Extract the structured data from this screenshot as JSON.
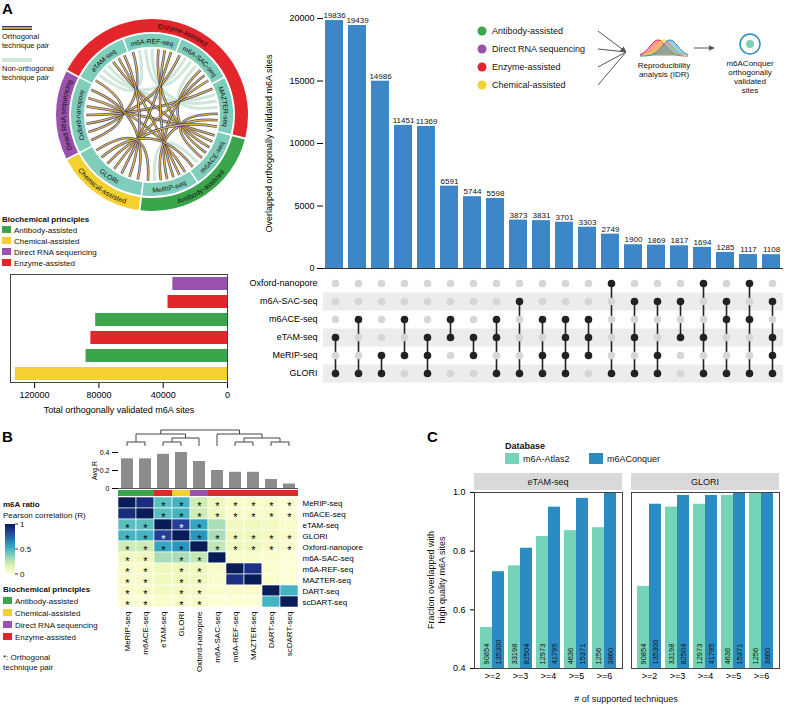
{
  "panel_labels": [
    "A",
    "B",
    "C"
  ],
  "chord_diagram": {
    "legend": [
      {
        "name": "Orthogonal technique pair"
      },
      {
        "name": "Non-orthogonal technique pair"
      }
    ],
    "techniques": [
      {
        "name": "Oxford-nanopore",
        "principle": "Direct RNA sequencing"
      },
      {
        "name": "eTAM-seq",
        "principle": "Enzyme-assisted"
      },
      {
        "name": "m6A-REF-seq",
        "principle": "Enzyme-assisted"
      },
      {
        "name": "m6A-SAC-seq",
        "principle": "Enzyme-assisted"
      },
      {
        "name": "MAZTER-seq",
        "principle": "Enzyme-assisted"
      },
      {
        "name": "m6ACE-seq",
        "principle": "Antibody-assisted"
      },
      {
        "name": "MeRIP-seq",
        "principle": "Antibody-assisted"
      },
      {
        "name": "GLORI",
        "principle": "Chemical-assisted"
      }
    ]
  },
  "principles": {
    "title": "Biochemical principles",
    "items": [
      {
        "name": "Antibody-assisted",
        "color": "#3aa54a"
      },
      {
        "name": "Chemical-assisted",
        "color": "#f4d130"
      },
      {
        "name": "Direct RNA sequencing",
        "color": "#9a52ad"
      },
      {
        "name": "Enzyme-assisted",
        "color": "#e2262c"
      }
    ]
  },
  "workflow": {
    "inputs": [
      "Antibody-assisted",
      "Direct RNA sequencing",
      "Enzyme-assisted",
      "Chemical-assisted"
    ],
    "steps": [
      "Reproducibility analysis (IDR)",
      "m6AConquer orthogonally validated sites"
    ]
  },
  "chart_data": [
    {
      "type": "upset",
      "ylabel": "Overlapped orthogonally validated m6A sites",
      "sets": [
        "Oxford-nanopore",
        "m6A-SAC-seq",
        "m6ACE-seq",
        "eTAM-seq",
        "MeRIP-seq",
        "GLORI"
      ],
      "intersections": [
        [
          "eTAM-seq",
          "GLORI"
        ],
        [
          "m6ACE-seq",
          "GLORI"
        ],
        [
          "MeRIP-seq",
          "GLORI"
        ],
        [
          "m6ACE-seq",
          "MeRIP-seq"
        ],
        [
          "eTAM-seq",
          "MeRIP-seq",
          "GLORI"
        ],
        [
          "m6ACE-seq",
          "eTAM-seq"
        ],
        [
          "eTAM-seq",
          "MeRIP-seq"
        ],
        [
          "m6ACE-seq",
          "eTAM-seq",
          "GLORI"
        ],
        [
          "m6A-SAC-seq",
          "GLORI"
        ],
        [
          "m6ACE-seq",
          "MeRIP-seq",
          "GLORI"
        ],
        [
          "m6ACE-seq",
          "eTAM-seq",
          "MeRIP-seq",
          "GLORI"
        ],
        [
          "m6ACE-seq",
          "eTAM-seq",
          "MeRIP-seq"
        ],
        [
          "Oxford-nanopore",
          "GLORI"
        ],
        [
          "m6A-SAC-seq",
          "eTAM-seq",
          "GLORI"
        ],
        [
          "m6A-SAC-seq",
          "MeRIP-seq",
          "GLORI"
        ],
        [
          "m6A-SAC-seq",
          "eTAM-seq"
        ],
        [
          "Oxford-nanopore",
          "eTAM-seq",
          "GLORI"
        ],
        [
          "m6A-SAC-seq",
          "m6ACE-seq",
          "GLORI"
        ],
        [
          "Oxford-nanopore",
          "m6ACE-seq",
          "GLORI"
        ],
        [
          "m6A-SAC-seq",
          "eTAM-seq",
          "MeRIP-seq",
          "GLORI"
        ]
      ],
      "values": [
        19836,
        19439,
        14986,
        11451,
        11369,
        6591,
        5744,
        5598,
        3873,
        3831,
        3701,
        3303,
        2749,
        1900,
        1869,
        1817,
        1694,
        1285,
        1117,
        1108
      ],
      "color": "#3d87c8",
      "ylim": [
        0,
        20000
      ],
      "yticks": [
        0,
        5000,
        10000,
        15000,
        20000
      ],
      "data_labels": true
    },
    {
      "type": "bar",
      "orientation": "horizontal",
      "categories": [
        "Oxford-nanopore",
        "m6A-SAC-seq",
        "m6ACE-seq",
        "eTAM-seq",
        "MeRIP-seq",
        "GLORI"
      ],
      "values": [
        34000,
        37000,
        82000,
        85000,
        88000,
        132000
      ],
      "colors": [
        "#9a52ad",
        "#e2262c",
        "#3aa54a",
        "#e2262c",
        "#3aa54a",
        "#f4d130"
      ],
      "xlabel": "Total orthogonally validated m6A sites",
      "xlim": [
        0,
        135000
      ],
      "xticks": [
        0,
        40000,
        80000,
        120000
      ]
    },
    {
      "type": "heatmap",
      "categories": [
        "MeRIP-seq",
        "m6ACE-seq",
        "eTAM-seq",
        "GLORI",
        "Oxford-nanopore",
        "m6A-SAC-seq",
        "m6A-REF-seq",
        "MAZTER-seq",
        "DART-seq",
        "scDART-seq"
      ],
      "principles": [
        "Antibody-assisted",
        "Antibody-assisted",
        "Enzyme-assisted",
        "Chemical-assisted",
        "Direct RNA sequencing",
        "Enzyme-assisted",
        "Enzyme-assisted",
        "Enzyme-assisted",
        "Enzyme-assisted",
        "Enzyme-assisted"
      ],
      "values": [
        [
          1,
          0.92,
          0.45,
          0.5,
          0.22,
          0.1,
          0.05,
          0.05,
          0.05,
          0.02
        ],
        [
          0.92,
          1,
          0.45,
          0.5,
          0.22,
          0.1,
          0.05,
          0.05,
          0.05,
          0.02
        ],
        [
          0.45,
          0.45,
          1,
          0.85,
          0.55,
          0.3,
          0.1,
          0.1,
          0.08,
          0.05
        ],
        [
          0.5,
          0.5,
          0.85,
          1,
          0.6,
          0.3,
          0.1,
          0.1,
          0.08,
          0.05
        ],
        [
          0.22,
          0.22,
          0.55,
          0.6,
          1,
          0.25,
          0.1,
          0.1,
          0.06,
          0.04
        ],
        [
          0.1,
          0.1,
          0.3,
          0.3,
          0.25,
          1,
          0.05,
          0.05,
          0.04,
          0.02
        ],
        [
          0.05,
          0.05,
          0.1,
          0.1,
          0.1,
          0.05,
          1,
          0.9,
          0.04,
          0.02
        ],
        [
          0.05,
          0.05,
          0.1,
          0.1,
          0.1,
          0.05,
          0.9,
          1,
          0.04,
          0.02
        ],
        [
          0.05,
          0.05,
          0.08,
          0.08,
          0.06,
          0.04,
          0.04,
          0.04,
          1,
          0.5
        ],
        [
          0.02,
          0.02,
          0.05,
          0.05,
          0.04,
          0.02,
          0.02,
          0.02,
          0.5,
          1
        ]
      ],
      "stars": [
        [
          false,
          false,
          true,
          true,
          true,
          true,
          true,
          true,
          true,
          true
        ],
        [
          false,
          false,
          true,
          true,
          true,
          true,
          true,
          true,
          true,
          true
        ],
        [
          true,
          true,
          false,
          true,
          true,
          false,
          false,
          false,
          false,
          false
        ],
        [
          true,
          true,
          true,
          false,
          true,
          true,
          true,
          true,
          true,
          true
        ],
        [
          true,
          true,
          true,
          true,
          false,
          true,
          true,
          true,
          true,
          true
        ],
        [
          true,
          true,
          false,
          true,
          true,
          false,
          false,
          false,
          false,
          false
        ],
        [
          true,
          true,
          false,
          true,
          true,
          false,
          false,
          false,
          false,
          false
        ],
        [
          true,
          true,
          false,
          true,
          true,
          false,
          false,
          false,
          false,
          false
        ],
        [
          true,
          true,
          false,
          true,
          true,
          false,
          false,
          false,
          false,
          false
        ],
        [
          true,
          true,
          false,
          true,
          true,
          false,
          false,
          false,
          false,
          false
        ]
      ],
      "star_symbol": "*",
      "star_legend": "*: Orthogonal technique pair",
      "color_title": "m6A ratio",
      "color_label": "Pearson correlation (R)",
      "color_range": [
        0,
        1
      ],
      "color_ticks": [
        0,
        0.5,
        1
      ],
      "dendrogram": [
        [
          [
            "MeRIP-seq",
            "m6ACE-seq"
          ],
          [
            [
              "eTAM-seq",
              "GLORI"
            ],
            "Oxford-nanopore"
          ]
        ],
        [
          "m6A-SAC-seq",
          [
            [
              "m6A-REF-seq",
              "MAZTER-seq"
            ],
            [
              "DART-seq",
              "scDART-seq"
            ]
          ]
        ]
      ]
    },
    {
      "type": "bar",
      "categories": [
        "MeRIP-seq",
        "m6ACE-seq",
        "eTAM-seq",
        "GLORI",
        "Oxford-nanopore",
        "m6A-SAC-seq",
        "m6A-REF-seq",
        "MAZTER-seq",
        "DART-seq",
        "scDART-seq"
      ],
      "values": [
        0.33,
        0.33,
        0.38,
        0.4,
        0.3,
        0.2,
        0.18,
        0.18,
        0.1,
        0.05
      ],
      "ylabel": "Avg.R",
      "ylim": [
        0,
        0.4
      ],
      "yticks": [
        0,
        0.2,
        0.4
      ],
      "color": "#8c8c8c"
    },
    {
      "type": "bar",
      "legend_title": "Database",
      "legend": "top",
      "panels": [
        "eTAM-seq",
        "GLORI"
      ],
      "categories": [
        ">=2",
        ">=3",
        ">=4",
        ">=5",
        ">=6"
      ],
      "series": [
        {
          "name": "m6A-Atlas2",
          "color": "#74d3b8",
          "values": [
            [
              0.54,
              0.75,
              0.85,
              0.87,
              0.88
            ],
            [
              0.68,
              0.95,
              0.96,
              0.99,
              1.0
            ]
          ],
          "counts": [
            [
              90854,
              33198,
              12973,
              4636,
              1256
            ],
            [
              90854,
              33198,
              12973,
              4636,
              1256
            ]
          ]
        },
        {
          "name": "m6AConquer",
          "color": "#2b8cc4",
          "values": [
            [
              0.73,
              0.81,
              0.95,
              0.98,
              1.0
            ],
            [
              0.96,
              0.99,
              0.99,
              1.0,
              1.0
            ]
          ],
          "counts": [
            [
              135300,
              82504,
              41795,
              15371,
              3860
            ],
            [
              135300,
              82504,
              41795,
              15371,
              3860
            ]
          ]
        }
      ],
      "xlabel": "# of supported techniques",
      "ylabel": "Fraction overlapped with high quality m6A sites",
      "ylim": [
        0.4,
        1.0
      ],
      "yticks": [
        0.4,
        0.6,
        0.8,
        {
          "value": 1,
          "label": "1.0"
        }
      ]
    }
  ]
}
